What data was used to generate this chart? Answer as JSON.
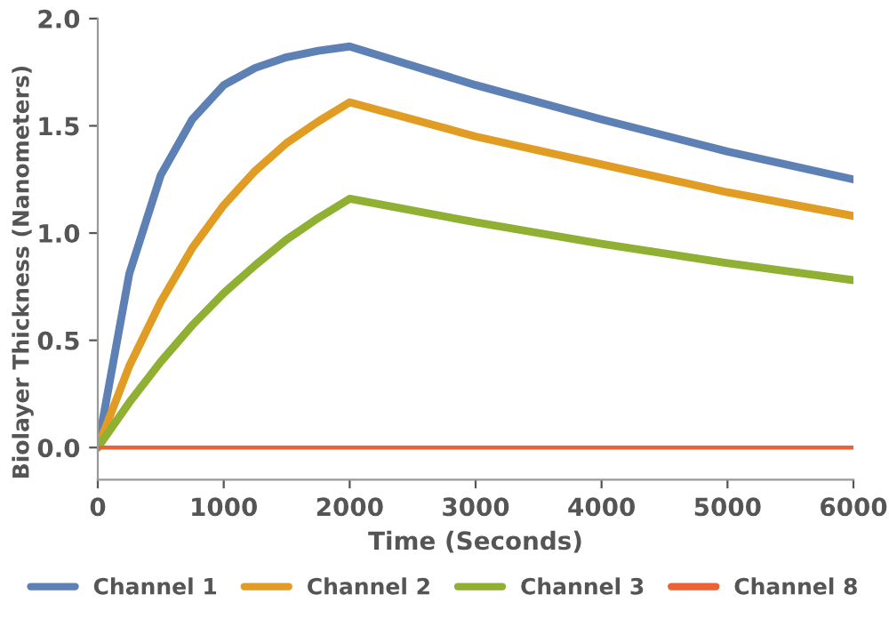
{
  "chart_data": {
    "type": "line",
    "xlabel": "Time (Seconds)",
    "ylabel": "Biolayer Thickness (Nanometers)",
    "x": [
      0,
      250,
      500,
      750,
      1000,
      1250,
      1500,
      1750,
      2000,
      3000,
      4000,
      5000,
      6000
    ],
    "series": [
      {
        "name": "Channel 1",
        "color": "#5e81b5",
        "values": [
          0,
          0.81,
          1.27,
          1.53,
          1.69,
          1.77,
          1.82,
          1.85,
          1.87,
          1.69,
          1.53,
          1.38,
          1.25
        ]
      },
      {
        "name": "Channel 2",
        "color": "#e19c24",
        "values": [
          0,
          0.38,
          0.68,
          0.93,
          1.13,
          1.29,
          1.42,
          1.52,
          1.61,
          1.45,
          1.32,
          1.19,
          1.08
        ]
      },
      {
        "name": "Channel 3",
        "color": "#8fb032",
        "values": [
          0,
          0.21,
          0.4,
          0.57,
          0.72,
          0.85,
          0.97,
          1.07,
          1.16,
          1.05,
          0.95,
          0.86,
          0.78
        ]
      },
      {
        "name": "Channel 8",
        "color": "#eb6235",
        "values": [
          0,
          0,
          0,
          0,
          0,
          0,
          0,
          0,
          0,
          0,
          0,
          0,
          0
        ]
      }
    ],
    "xlim": [
      0,
      6000
    ],
    "ylim": [
      -0.15,
      2.0
    ],
    "xticks": [
      0,
      1000,
      2000,
      3000,
      4000,
      5000,
      6000
    ],
    "yticks": [
      {
        "value": 0,
        "label": "0.0"
      },
      {
        "value": 0.5,
        "label": "0.5"
      },
      {
        "value": 1,
        "label": "1.0"
      },
      {
        "value": 1.5,
        "label": "1.5"
      },
      {
        "value": 2,
        "label": "2.0"
      }
    ],
    "grid": false,
    "legend": "bottom",
    "line_style": "solid",
    "marker": "none"
  }
}
